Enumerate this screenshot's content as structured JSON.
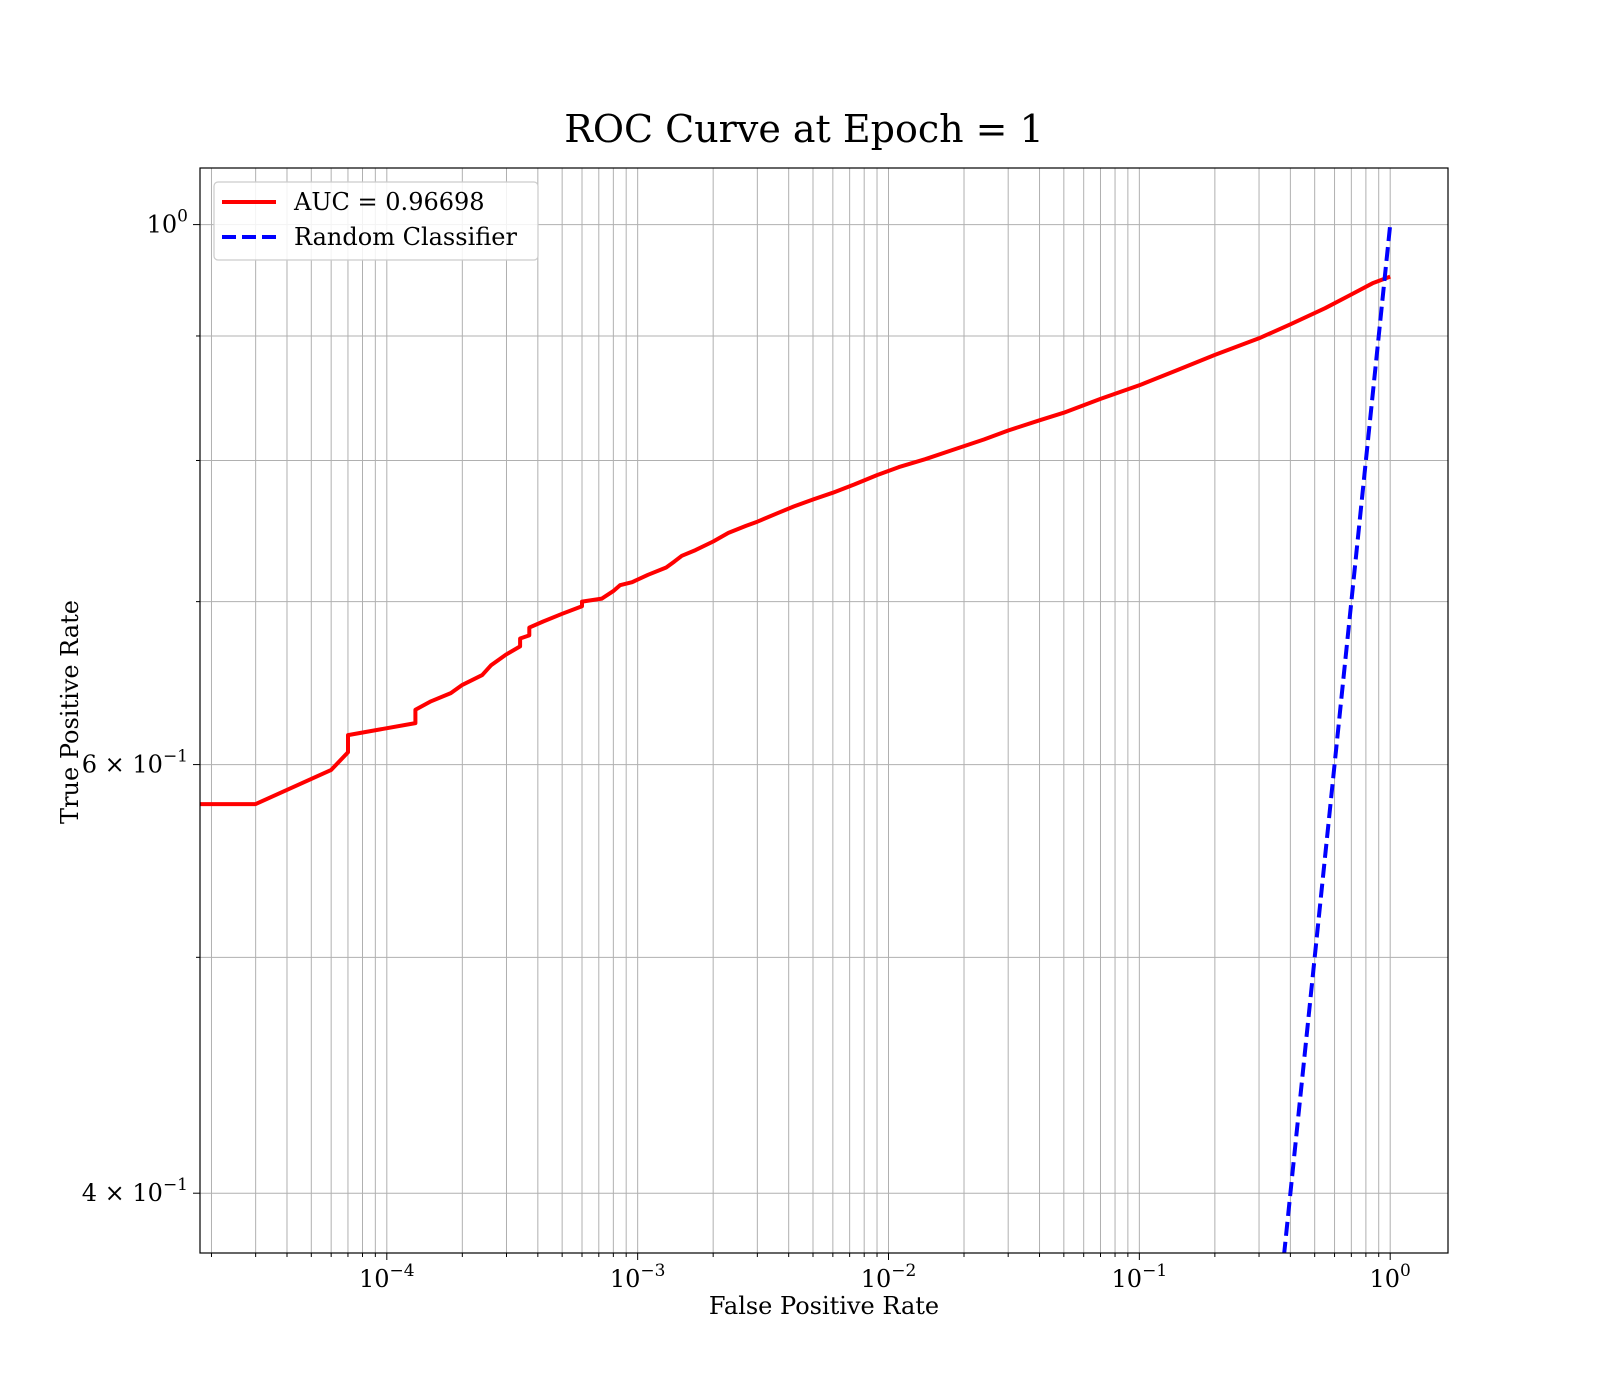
{
  "chart_data": {
    "type": "line",
    "title": "ROC Curve at Epoch = 1",
    "xlabel": "False Positive Rate",
    "ylabel": "True Positive Rate",
    "x_scale": "log",
    "y_scale": "log",
    "xlim": [
      1.8e-05,
      1.7
    ],
    "ylim": [
      0.378,
      1.055
    ],
    "x_ticks": [
      {
        "value": 0.0001,
        "base": "10",
        "exp": "−4"
      },
      {
        "value": 0.001,
        "base": "10",
        "exp": "−3"
      },
      {
        "value": 0.01,
        "base": "10",
        "exp": "−2"
      },
      {
        "value": 0.1,
        "base": "10",
        "exp": "−1"
      },
      {
        "value": 1,
        "base": "10",
        "exp": "0"
      }
    ],
    "y_ticks": [
      {
        "value": 1.0,
        "base": "10",
        "exp": "0"
      },
      {
        "value": 0.6,
        "base": "6 × 10",
        "exp": "−1"
      },
      {
        "value": 0.4,
        "base": "4 × 10",
        "exp": "−1"
      }
    ],
    "y_minor_ticks": [
      0.5,
      0.7,
      0.8,
      0.9
    ],
    "grid": true,
    "legend_position": "top-left",
    "series": [
      {
        "name": "AUC = 0.96698",
        "color": "#ff0000",
        "style": "solid",
        "x": [
          1.8e-05,
          3e-05,
          6e-05,
          7e-05,
          7e-05,
          0.00013,
          0.00013,
          0.00015,
          0.00018,
          0.0002,
          0.00024,
          0.00026,
          0.0003,
          0.00034,
          0.00034,
          0.00037,
          0.00037,
          0.00042,
          0.0005,
          0.0006,
          0.0006,
          0.00072,
          0.0008,
          0.00085,
          0.00095,
          0.0011,
          0.0013,
          0.0014,
          0.0015,
          0.0017,
          0.002,
          0.0023,
          0.0027,
          0.003,
          0.0036,
          0.0042,
          0.005,
          0.006,
          0.0073,
          0.009,
          0.011,
          0.014,
          0.018,
          0.024,
          0.03,
          0.04,
          0.05,
          0.07,
          0.1,
          0.14,
          0.2,
          0.3,
          0.4,
          0.55,
          0.7,
          0.85,
          1.0
        ],
        "y": [
          0.578,
          0.578,
          0.597,
          0.607,
          0.617,
          0.624,
          0.632,
          0.637,
          0.642,
          0.647,
          0.653,
          0.659,
          0.666,
          0.671,
          0.676,
          0.678,
          0.683,
          0.687,
          0.692,
          0.697,
          0.7,
          0.702,
          0.707,
          0.711,
          0.713,
          0.718,
          0.723,
          0.727,
          0.731,
          0.735,
          0.741,
          0.747,
          0.752,
          0.755,
          0.761,
          0.766,
          0.771,
          0.776,
          0.782,
          0.789,
          0.795,
          0.801,
          0.808,
          0.816,
          0.823,
          0.831,
          0.837,
          0.848,
          0.859,
          0.871,
          0.884,
          0.898,
          0.91,
          0.924,
          0.936,
          0.946,
          0.952
        ]
      },
      {
        "name": "Random Classifier",
        "color": "#0000ff",
        "style": "dashed",
        "x": [
          0.37,
          1.0
        ],
        "y": [
          0.37,
          1.0
        ]
      }
    ]
  }
}
